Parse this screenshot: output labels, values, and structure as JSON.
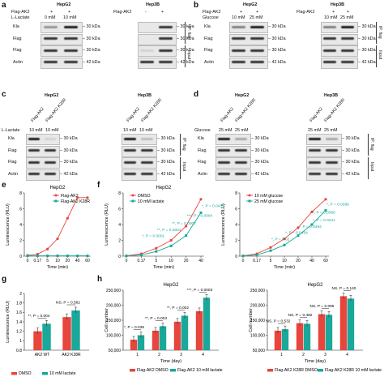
{
  "panels": {
    "a": {
      "letter": "a",
      "hepg2": {
        "title": "HepG2",
        "flag_row": [
          "Flag-AK2",
          "+",
          "+"
        ],
        "treat_label": "L-Lactate",
        "doses": [
          "0 mM",
          "10 mM"
        ]
      },
      "hep3b": {
        "title": "Hep3B",
        "flag_row": [
          "Flag-AK2",
          "-",
          "+"
        ]
      },
      "rows": [
        "Kla",
        "Flag",
        "Flag",
        "Actin"
      ],
      "kda": [
        "30 kDa",
        "30 kDa",
        "30 kDa",
        "42 kDa"
      ],
      "groups": [
        "IP: flag",
        "Input"
      ]
    },
    "b": {
      "letter": "b",
      "hepg2": {
        "title": "HepG2",
        "flag_row": [
          "Flag-AK2",
          "+",
          "+"
        ],
        "treat_label": "Glucose",
        "doses": [
          "10 mM",
          "25 mM"
        ]
      },
      "hep3b": {
        "title": "Hep3B",
        "flag_row": [
          "Flag-AK2",
          "+",
          "+"
        ],
        "doses": [
          "10 mM",
          "25 mM"
        ]
      },
      "rows": [
        "Kla",
        "Flag",
        "Flag",
        "Actin"
      ],
      "kda": [
        "30 kDa",
        "30 kDa",
        "30 kDa",
        "42 kDa"
      ],
      "groups": [
        "IP: flag",
        "Input"
      ]
    },
    "c": {
      "letter": "c",
      "hepg2": {
        "title": "HepG2",
        "lanes": [
          "Flag-AK2",
          "Flag-AK2 K28R"
        ],
        "treat_label": "L-Lactate",
        "doses": [
          "10 mM",
          "10 mM"
        ]
      },
      "hep3b": {
        "title": "Hep3B",
        "lanes": [
          "Flag-AK2",
          "Flag-AK2 K28R"
        ],
        "doses": [
          "10 mM",
          "10 mM"
        ]
      },
      "rows": [
        "Kla",
        "Flag",
        "Flag",
        "Actin"
      ],
      "kda": [
        "30 kDa",
        "30 kDa",
        "30 kDa",
        "42 kDa"
      ],
      "groups": [
        "IP: flag",
        "Input"
      ]
    },
    "d": {
      "letter": "d",
      "hepg2": {
        "title": "HepG2",
        "lanes": [
          "Flag-AK2",
          "Flag-AK2 K28R"
        ],
        "treat_label": "Glucose",
        "doses": [
          "25 mM",
          "25 mM"
        ]
      },
      "hep3b": {
        "title": "Hep3B",
        "lanes": [
          "Flag-AK2",
          "Flag-AK2 K28R"
        ],
        "doses": [
          "25 mM",
          "25 mM"
        ]
      },
      "rows": [
        "Kla",
        "Flag",
        "Flag",
        "Actin"
      ],
      "kda": [
        "30 kDa",
        "30 kDa",
        "30 kDa",
        "42 kDa"
      ],
      "groups": [
        "IP: flag",
        "Input"
      ]
    }
  },
  "chart_data": [
    {
      "id": "e",
      "letter": "e",
      "type": "line",
      "title": "HepG2",
      "xlabel": "Time (min)",
      "ylabel": "Luminescence (RLU)",
      "x": [
        "0",
        "0.17",
        "5",
        "10",
        "20",
        "40",
        "60"
      ],
      "ylim": [
        0,
        8
      ],
      "yticks": [
        0,
        2,
        4,
        6,
        8
      ],
      "series": [
        {
          "name": "Flag-AK2",
          "color": "#e8453c",
          "values": [
            0.1,
            0.25,
            0.9,
            2.2,
            4.8,
            7.4,
            7.4
          ]
        },
        {
          "name": "Flag-AK2 K28R",
          "color": "#1aa89a",
          "values": [
            0.05,
            0.05,
            0.05,
            0.05,
            0.05,
            0.05,
            0.05
          ]
        }
      ]
    },
    {
      "id": "f1",
      "letter": "f",
      "type": "line",
      "title": "HepG2",
      "xlabel": "Time (min)",
      "ylabel": "Luminescence (RLU)",
      "x": [
        "0",
        "0.17",
        "5",
        "10",
        "20",
        "40"
      ],
      "ylim": [
        0,
        8
      ],
      "yticks": [
        0,
        2,
        4,
        6,
        8
      ],
      "series": [
        {
          "name": "DMSO",
          "color": "#e8453c",
          "values": [
            0.05,
            0.3,
            1.0,
            2.0,
            3.8,
            7.2
          ]
        },
        {
          "name": "10 mM lactate",
          "color": "#1aa89a",
          "values": [
            0.03,
            0.15,
            0.6,
            1.3,
            2.6,
            5.5
          ]
        }
      ],
      "annotations": [
        "*, P = 0.0415",
        "***, P = 0.0004",
        "**, P = 0.0007",
        "**, P = 0.0001",
        "*, P = 0.0001"
      ]
    },
    {
      "id": "f2",
      "type": "line",
      "title": "",
      "xlabel": "Time (min)",
      "ylabel": "Luminescence (RLU)",
      "x": [
        "0",
        "0.17",
        "5",
        "10",
        "20",
        "40",
        "60"
      ],
      "ylim": [
        0,
        8
      ],
      "yticks": [
        0,
        2,
        4,
        6,
        8
      ],
      "series": [
        {
          "name": "10 mM glucose",
          "color": "#e8453c",
          "values": [
            0.05,
            0.3,
            1.1,
            2.2,
            3.6,
            5.6,
            7.2
          ]
        },
        {
          "name": "25 mM glucose",
          "color": "#1aa89a",
          "values": [
            0.03,
            0.15,
            0.7,
            1.4,
            2.6,
            4.0,
            5.8
          ]
        }
      ],
      "annotations": [
        "*, P = 0.0388",
        "*, P = 0.0366",
        "*, P = 0.0241",
        "*, P = 0.0494",
        "*, P = 0.0464",
        "*, P = 0.02"
      ]
    },
    {
      "id": "g",
      "letter": "g",
      "type": "bar",
      "title": "",
      "xlabel": "",
      "ylabel": "Luminescence (RLU)",
      "categories": [
        "AK2 WT",
        "AK2 K28R"
      ],
      "ylim": [
        0.8,
        2.0
      ],
      "yticks": [
        0.8,
        1.0,
        1.2,
        1.4,
        1.6,
        1.8,
        2.0
      ],
      "series": [
        {
          "name": "DMSO",
          "color": "#e8453c",
          "values": [
            1.2,
            1.5
          ]
        },
        {
          "name": "10 mM lactate",
          "color": "#1aa89a",
          "values": [
            1.36,
            1.64
          ]
        }
      ],
      "annotations": [
        "**, P = 0.004",
        "NS, P = 0.562"
      ]
    },
    {
      "id": "h1",
      "letter": "h",
      "type": "bar",
      "title": "HepG2",
      "xlabel": "Time (day)",
      "ylabel": "Cell number",
      "categories": [
        "1",
        "2",
        "3",
        "4"
      ],
      "ylim": [
        50000,
        250000
      ],
      "yticks": [
        50000,
        100000,
        150000,
        200000,
        250000
      ],
      "series": [
        {
          "name": "Flag-AK2 DMSO",
          "color": "#e8453c",
          "values": [
            85000,
            115000,
            145000,
            180000
          ]
        },
        {
          "name": "Flag-AK2 10 mM lactate",
          "color": "#1aa89a",
          "values": [
            100000,
            130000,
            165000,
            225000
          ]
        }
      ],
      "annotations": [
        "*, P = 0.036",
        "**, P = 0.003",
        "**, P = 0.002",
        "***, P = 0.0003"
      ]
    },
    {
      "id": "h2",
      "type": "bar",
      "title": "HepG2",
      "xlabel": "Time (day)",
      "ylabel": "Cell number",
      "categories": [
        "1",
        "2",
        "3",
        "4"
      ],
      "ylim": [
        50000,
        250000
      ],
      "yticks": [
        50000,
        100000,
        150000,
        200000,
        250000
      ],
      "series": [
        {
          "name": "Flag-AK2 K28R DMSO",
          "color": "#e8453c",
          "values": [
            115000,
            140000,
            170000,
            230000
          ]
        },
        {
          "name": "Flag-AK2 K28R 10 mM lactate",
          "color": "#1aa89a",
          "values": [
            120000,
            138000,
            168000,
            222000
          ]
        }
      ],
      "annotations": [
        "NS, P = 0.532",
        "NS, P = 0.482",
        "NS, P = 0.099",
        "NS, P = 0.140"
      ]
    }
  ]
}
